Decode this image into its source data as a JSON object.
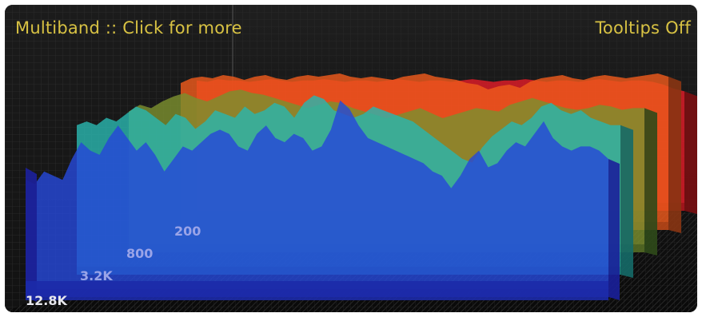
{
  "header": {
    "title": "Multiband :: Click for more",
    "tooltips": "Tooltips Off"
  },
  "colors": {
    "background": "#141414",
    "header_text": "#d8c243",
    "bands": [
      "#e21c28",
      "#ee5a1c",
      "#7b8f2e",
      "#2ab5ad",
      "#2648d8"
    ],
    "band_shadows": [
      "#7a0f12",
      "#8a3513",
      "#2f4a1a",
      "#156a68",
      "#1a1f9a"
    ]
  },
  "bands": [
    {
      "label": "",
      "label_visible": false,
      "profile": [
        0.96,
        0.95,
        0.97,
        0.96,
        0.96,
        0.95,
        0.96,
        0.97,
        0.96,
        0.95,
        0.96,
        0.96,
        0.97,
        0.96,
        0.95,
        0.96,
        0.96,
        0.95,
        0.96,
        0.97,
        0.96,
        0.95,
        0.96,
        0.96,
        0.95,
        0.96,
        0.97,
        0.96,
        0.95,
        0.96,
        0.96,
        0.97,
        0.96,
        0.95,
        0.96,
        0.96,
        0.95,
        0.96,
        0.97,
        0.96,
        0.95,
        0.96,
        0.96,
        0.95,
        0.93,
        0.9,
        0.88
      ]
    },
    {
      "label": "",
      "label_visible": false,
      "profile": [
        0.92,
        0.95,
        0.96,
        0.95,
        0.97,
        0.96,
        0.94,
        0.96,
        0.97,
        0.95,
        0.94,
        0.96,
        0.97,
        0.96,
        0.97,
        0.98,
        0.96,
        0.95,
        0.96,
        0.95,
        0.94,
        0.96,
        0.97,
        0.98,
        0.96,
        0.95,
        0.94,
        0.92,
        0.91,
        0.88,
        0.9,
        0.91,
        0.89,
        0.93,
        0.95,
        0.96,
        0.97,
        0.95,
        0.94,
        0.96,
        0.97,
        0.96,
        0.95,
        0.96,
        0.97,
        0.98,
        0.96
      ]
    },
    {
      "label": "200",
      "label_visible": true,
      "profile": [
        0.84,
        0.88,
        0.86,
        0.9,
        0.93,
        0.95,
        0.92,
        0.9,
        0.93,
        0.96,
        0.97,
        0.95,
        0.94,
        0.92,
        0.9,
        0.88,
        0.86,
        0.88,
        0.9,
        0.89,
        0.86,
        0.84,
        0.82,
        0.8,
        0.82,
        0.84,
        0.86,
        0.83,
        0.8,
        0.82,
        0.84,
        0.86,
        0.85,
        0.84,
        0.88,
        0.9,
        0.92,
        0.9,
        0.88,
        0.86,
        0.85,
        0.86,
        0.88,
        0.87,
        0.85,
        0.86,
        0.86
      ]
    },
    {
      "label": "800",
      "label_visible": true,
      "profile": [
        0.8,
        0.82,
        0.8,
        0.84,
        0.82,
        0.86,
        0.9,
        0.88,
        0.84,
        0.8,
        0.86,
        0.84,
        0.78,
        0.82,
        0.88,
        0.86,
        0.84,
        0.9,
        0.86,
        0.88,
        0.92,
        0.9,
        0.84,
        0.92,
        0.96,
        0.94,
        0.88,
        0.86,
        0.84,
        0.86,
        0.9,
        0.88,
        0.86,
        0.84,
        0.82,
        0.78,
        0.74,
        0.7,
        0.66,
        0.62,
        0.6,
        0.68,
        0.74,
        0.78,
        0.82,
        0.8,
        0.84,
        0.9,
        0.92,
        0.88,
        0.86,
        0.88,
        0.84,
        0.82,
        0.8,
        0.8
      ]
    },
    {
      "label": "3.2K",
      "label_visible": true,
      "profile": [
        0.56,
        0.54,
        0.6,
        0.58,
        0.56,
        0.66,
        0.74,
        0.7,
        0.68,
        0.76,
        0.82,
        0.76,
        0.7,
        0.74,
        0.68,
        0.6,
        0.66,
        0.72,
        0.7,
        0.74,
        0.78,
        0.8,
        0.78,
        0.72,
        0.7,
        0.78,
        0.82,
        0.76,
        0.74,
        0.78,
        0.76,
        0.7,
        0.72,
        0.8,
        0.94,
        0.9,
        0.82,
        0.76,
        0.74,
        0.72,
        0.7,
        0.68,
        0.66,
        0.64,
        0.6,
        0.58,
        0.52,
        0.58,
        0.66,
        0.7,
        0.62,
        0.64,
        0.7,
        0.74,
        0.72,
        0.78,
        0.84,
        0.76,
        0.72,
        0.7,
        0.72,
        0.72,
        0.7,
        0.66
      ]
    },
    {
      "label": "12.8K",
      "label_visible": true,
      "profile": []
    }
  ]
}
